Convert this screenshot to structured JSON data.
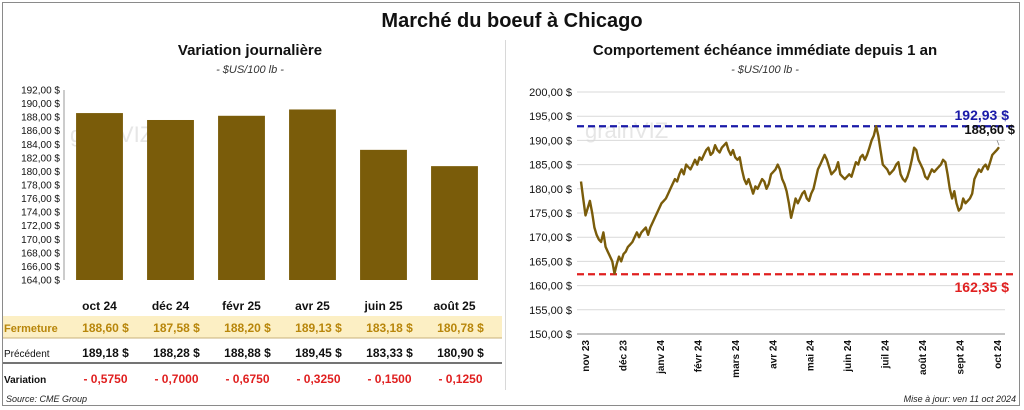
{
  "page": {
    "title": "Marché du boeuf à Chicago",
    "source": "Source: CME Group",
    "updated": "Mise à jour: ven 11 oct 2024",
    "watermark": "grainVIZ"
  },
  "chart_data": [
    {
      "type": "bar",
      "title": "Variation  journalière",
      "subtitle": "- $US/100 lb -",
      "categories": [
        "oct 24",
        "déc 24",
        "févr 25",
        "avr 25",
        "juin 25",
        "août 25"
      ],
      "series": [
        {
          "values": [
            188.6,
            187.58,
            188.2,
            189.13,
            183.18,
            180.78
          ]
        }
      ],
      "ylim": [
        164,
        192
      ],
      "yticks": [
        "192,00 $",
        "190,00 $",
        "188,00 $",
        "186,00 $",
        "184,00 $",
        "182,00 $",
        "180,00 $",
        "178,00 $",
        "176,00 $",
        "174,00 $",
        "172,00 $",
        "170,00 $",
        "168,00 $",
        "166,00 $",
        "164,00 $"
      ],
      "colors": {
        "bar": "#7a5c0a"
      },
      "table": {
        "rows": [
          {
            "label": "Fermeture",
            "values": [
              "188,60  $",
              "187,58  $",
              "188,20  $",
              "189,13  $",
              "183,18  $",
              "180,78  $"
            ]
          },
          {
            "label": "Précédent",
            "values": [
              "189,18  $",
              "188,28  $",
              "188,88  $",
              "189,45  $",
              "183,33  $",
              "180,90  $"
            ]
          },
          {
            "label": "Variation",
            "values": [
              "- 0,5750",
              "- 0,7000",
              "- 0,6750",
              "- 0,3250",
              "- 0,1500",
              "- 0,1250"
            ]
          }
        ],
        "colors": {
          "fermeture_bg": "#fcefc4",
          "fermeture_text": "#b8860b",
          "variation_text": "#e02020"
        }
      }
    },
    {
      "type": "line",
      "title": "Comportement  échéance immédiate depuis 1 an",
      "subtitle": "- $US/100 lb -",
      "x_labels": [
        "nov 23",
        "déc 23",
        "janv 24",
        "févr 24",
        "mars 24",
        "avr 24",
        "mai 24",
        "juin 24",
        "juil 24",
        "août 24",
        "sept 24",
        "oct 24"
      ],
      "ylim": [
        150,
        200
      ],
      "yticks": [
        "200,00 $",
        "195,00 $",
        "190,00 $",
        "185,00 $",
        "180,00 $",
        "175,00 $",
        "170,00 $",
        "165,00 $",
        "160,00 $",
        "155,00 $",
        "150,00 $"
      ],
      "series": [
        {
          "values": [
            181.5,
            178,
            174.5,
            176,
            177.5,
            175,
            172,
            170.5,
            169.5,
            169,
            171,
            168,
            167,
            166,
            165,
            162.5,
            164.5,
            166,
            165,
            166.5,
            167,
            168,
            168.5,
            169,
            170,
            171,
            170,
            171,
            171.5,
            172,
            170.5,
            172,
            173,
            174,
            175,
            176,
            177,
            177.5,
            178,
            179,
            180,
            181,
            182,
            181.5,
            183,
            184,
            183,
            185,
            184.5,
            184,
            185,
            186,
            185,
            186.5,
            186,
            187,
            188,
            188.5,
            187,
            187.5,
            189,
            188,
            187.5,
            188.5,
            189,
            189.5,
            188,
            187,
            188,
            186.5,
            186,
            186.5,
            184,
            182,
            181,
            182,
            180.5,
            179,
            180.5,
            180,
            181,
            182,
            181.5,
            180,
            181,
            183,
            183.5,
            184,
            185,
            184,
            182,
            181,
            179.5,
            177,
            174,
            176,
            178,
            177,
            178,
            179,
            179.5,
            178,
            177.5,
            179,
            180,
            182,
            184,
            185,
            186,
            187,
            186,
            184.5,
            183,
            183.5,
            184,
            185.5,
            183,
            182.5,
            182,
            182.5,
            183,
            182.5,
            184,
            185.5,
            185,
            186.5,
            187,
            186,
            187,
            188.5,
            190,
            191,
            192.93,
            191,
            188,
            185,
            184.5,
            184,
            183,
            183.5,
            184,
            185,
            185.5,
            183,
            182,
            181.5,
            182.5,
            184,
            186,
            188.5,
            188,
            186,
            185,
            184,
            182.5,
            182,
            183,
            184,
            183.5,
            184,
            184.5,
            185,
            186,
            185.5,
            183,
            180,
            178,
            179.5,
            177,
            175.5,
            176,
            178,
            177,
            177.5,
            178,
            179,
            182,
            183,
            184,
            183.5,
            184.5,
            185,
            184,
            185.5,
            187,
            187.5,
            188,
            188.6
          ],
          "color": "#7a5c0a"
        }
      ],
      "annotations": {
        "max": {
          "label": "192,93 $",
          "value": 192.93,
          "color": "#1a1aa8"
        },
        "min": {
          "label": "162,35 $",
          "value": 162.35,
          "color": "#e02020"
        },
        "last": {
          "label": "188,60 $",
          "value": 188.6,
          "color": "#111111"
        }
      }
    }
  ]
}
